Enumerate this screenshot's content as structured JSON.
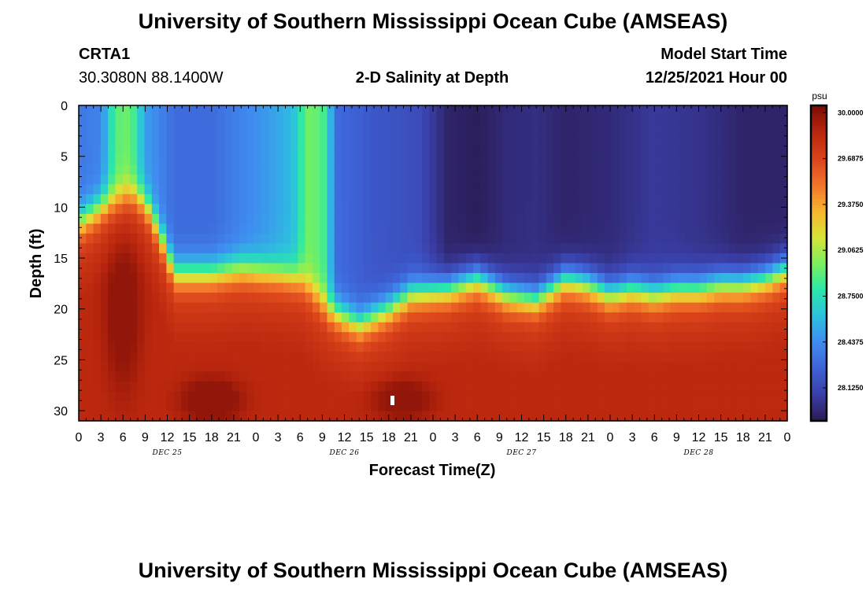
{
  "title": "University of Southern Mississippi Ocean Cube (AMSEAS)",
  "footer_title": "University of Southern Mississippi Ocean Cube (AMSEAS)",
  "station": {
    "name": "CRTA1",
    "coords": "30.3080N  88.1400W"
  },
  "model": {
    "label": "Model Start Time",
    "time": "12/25/2021 Hour 00"
  },
  "chart_data": {
    "type": "heatmap",
    "title": "2-D Salinity at Depth",
    "xlabel": "Forecast Time(Z)",
    "ylabel": "Depth (ft)",
    "x_range_hours": [
      0,
      96
    ],
    "y_range_ft": [
      0,
      31
    ],
    "y_inverted": true,
    "x_tick_labels": [
      "0",
      "3",
      "6",
      "9",
      "12",
      "15",
      "18",
      "21",
      "0",
      "3",
      "6",
      "9",
      "12",
      "15",
      "18",
      "21",
      "0",
      "3",
      "6",
      "9",
      "12",
      "15",
      "18",
      "21",
      "0",
      "3",
      "6",
      "9",
      "12",
      "15",
      "18",
      "21",
      "0"
    ],
    "y_ticks": [
      0,
      5,
      10,
      15,
      20,
      25,
      30
    ],
    "date_labels": [
      {
        "label": "DEC 25",
        "hour": 12
      },
      {
        "label": "DEC 26",
        "hour": 36
      },
      {
        "label": "DEC 27",
        "hour": 60
      },
      {
        "label": "DEC 28",
        "hour": 84
      }
    ],
    "colorbar": {
      "unit": "psu",
      "min": 27.9,
      "max": 30.05,
      "tick_labels": [
        "30.0000",
        "29.6875",
        "29.3750",
        "29.0625",
        "28.7500",
        "28.4375",
        "28.1250"
      ],
      "tick_values": [
        30.0,
        29.6875,
        29.375,
        29.0625,
        28.75,
        28.4375,
        28.125
      ],
      "colormap": [
        "#2b1a52",
        "#3a3fa8",
        "#3e62d6",
        "#3f8cf0",
        "#2cc2de",
        "#2be8a8",
        "#7cf05c",
        "#d9e436",
        "#f8b42e",
        "#f2722a",
        "#d9421a",
        "#b8260e",
        "#7a0c05"
      ]
    },
    "grid_size": {
      "hours": 97,
      "depths": 32
    },
    "field_description": {
      "halocline_depth_ft_by_hour": [
        [
          0,
          11.5
        ],
        [
          4,
          9.5
        ],
        [
          7,
          8.5
        ],
        [
          9,
          9.5
        ],
        [
          11,
          12.5
        ],
        [
          13,
          16.5
        ],
        [
          18,
          16.5
        ],
        [
          22,
          16
        ],
        [
          27,
          16.5
        ],
        [
          30,
          17
        ],
        [
          34,
          20
        ],
        [
          38,
          21.5
        ],
        [
          42,
          20
        ],
        [
          45,
          18.5
        ],
        [
          50,
          18
        ],
        [
          54,
          17
        ],
        [
          58,
          18.5
        ],
        [
          62,
          19
        ],
        [
          66,
          17
        ],
        [
          69,
          17.5
        ],
        [
          72,
          18.5
        ],
        [
          75,
          18
        ],
        [
          78,
          18.5
        ],
        [
          81,
          18
        ],
        [
          84,
          18
        ],
        [
          87,
          17.5
        ],
        [
          90,
          17.5
        ],
        [
          93,
          17
        ],
        [
          96,
          16
        ]
      ],
      "surface_salinity_by_hour": [
        [
          0,
          28.35
        ],
        [
          3,
          28.4
        ],
        [
          5,
          28.9
        ],
        [
          7,
          28.95
        ],
        [
          9,
          28.5
        ],
        [
          13,
          28.3
        ],
        [
          18,
          28.3
        ],
        [
          22,
          28.4
        ],
        [
          26,
          28.5
        ],
        [
          29,
          28.6
        ],
        [
          31,
          28.95
        ],
        [
          33,
          28.9
        ],
        [
          35,
          28.3
        ],
        [
          40,
          28.2
        ],
        [
          46,
          28.15
        ],
        [
          50,
          27.95
        ],
        [
          54,
          27.92
        ],
        [
          58,
          27.98
        ],
        [
          62,
          28.0
        ],
        [
          66,
          27.95
        ],
        [
          72,
          27.98
        ],
        [
          78,
          28.05
        ],
        [
          84,
          28.02
        ],
        [
          90,
          27.95
        ],
        [
          96,
          27.95
        ]
      ],
      "deep_salinity_psu": 29.7,
      "max_salinity_psu": 29.98
    }
  }
}
